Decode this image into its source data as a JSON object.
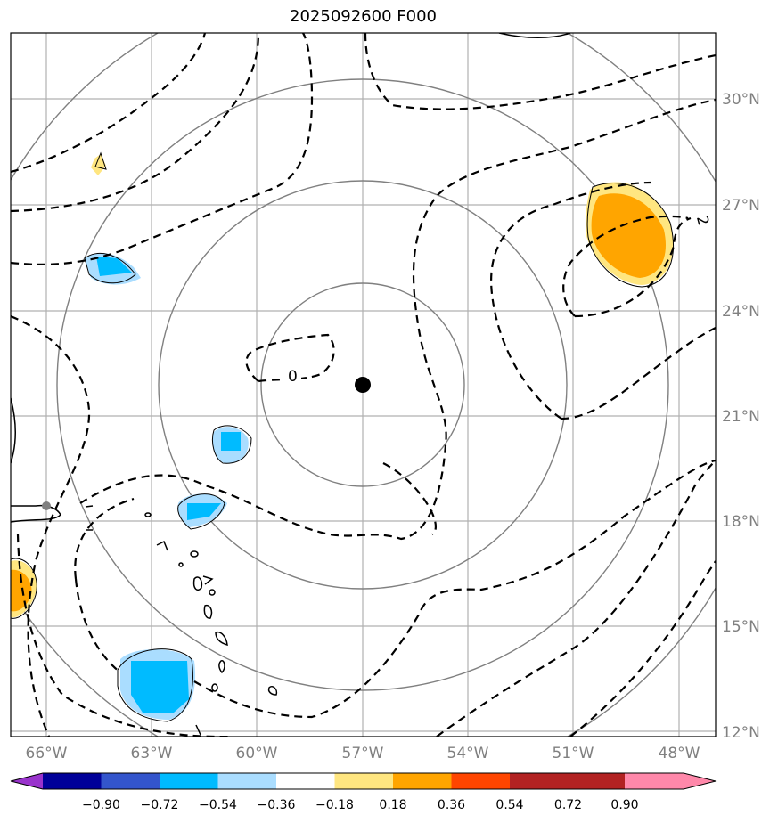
{
  "map": {
    "title": "2025092600 F000",
    "center_marker": "storm-center-dot",
    "lon_ticks": [
      "66°W",
      "63°W",
      "60°W",
      "57°W",
      "54°W",
      "51°W",
      "48°W"
    ],
    "lat_ticks": [
      "30°N",
      "27°N",
      "24°N",
      "21°N",
      "18°N",
      "15°N",
      "12°N"
    ],
    "contour_labels": [
      "0",
      "2"
    ],
    "colors": {
      "range_rings": "#808080",
      "gridlines": "#b0b0b0",
      "contours": "#000000",
      "coast": "#000000"
    }
  },
  "colorbar": {
    "ticks": [
      "−0.90",
      "−0.72",
      "−0.54",
      "−0.36",
      "−0.18",
      "0.18",
      "0.36",
      "0.54",
      "0.72",
      "0.90"
    ],
    "colors": [
      "#9933cc",
      "#000099",
      "#3355cc",
      "#00bbff",
      "#aaddff",
      "#ffffff",
      "#ffe680",
      "#ffa500",
      "#ff4500",
      "#b22222",
      "#ff88aa"
    ]
  }
}
